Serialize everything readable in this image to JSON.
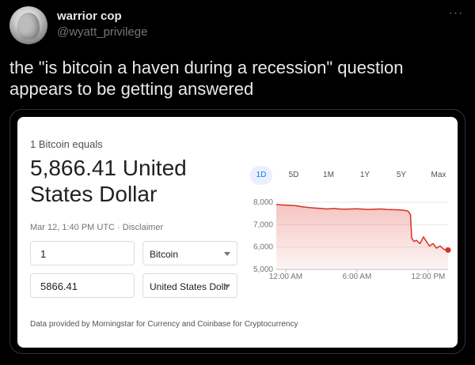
{
  "tweet": {
    "display_name": "warrior cop",
    "handle": "@wyatt_privilege",
    "more_icon": "···",
    "text": "the \"is bitcoin a haven during a recession\" question appears to be getting answered"
  },
  "converter": {
    "equals_label": "1 Bitcoin equals",
    "value_text": "5,866.41 United States Dollar",
    "timestamp": "Mar 12, 1:40 PM UTC",
    "separator": " · ",
    "disclaimer": "Disclaimer",
    "amount_from": "1",
    "currency_from": "Bitcoin",
    "amount_to": "5866.41",
    "currency_to": "United States Dolla",
    "footer": "Data provided by Morningstar for Currency and Coinbase for Cryptocurrency",
    "ranges": [
      "1D",
      "5D",
      "1M",
      "1Y",
      "5Y",
      "Max"
    ],
    "active_range": "1D"
  },
  "chart_data": {
    "type": "area",
    "yticks": [
      8000,
      7000,
      6000,
      5000
    ],
    "ytick_labels": [
      "8,000",
      "7,000",
      "6,000",
      "5,000"
    ],
    "ylim": [
      5000,
      8200
    ],
    "xticks": [
      0,
      6,
      12
    ],
    "xtick_labels": [
      "12:00 AM",
      "6:00 AM",
      "12:00 PM"
    ],
    "xlim": [
      -0.8,
      13.67
    ],
    "x": [
      -0.8,
      -0.3,
      0.2,
      0.8,
      1.4,
      2.0,
      2.5,
      3.0,
      3.5,
      4.0,
      4.5,
      5.0,
      5.5,
      6.0,
      6.5,
      7.0,
      7.5,
      8.0,
      8.5,
      9.0,
      9.5,
      10.0,
      10.3,
      10.5,
      10.6,
      10.8,
      11.0,
      11.3,
      11.6,
      11.9,
      12.1,
      12.4,
      12.7,
      13.0,
      13.3,
      13.67
    ],
    "y": [
      7900,
      7880,
      7870,
      7850,
      7800,
      7760,
      7740,
      7720,
      7700,
      7720,
      7700,
      7690,
      7700,
      7710,
      7690,
      7680,
      7690,
      7700,
      7680,
      7670,
      7660,
      7640,
      7600,
      7450,
      6400,
      6250,
      6300,
      6150,
      6450,
      6200,
      6050,
      6150,
      5950,
      6050,
      5900,
      5866
    ],
    "colors": {
      "line": "#d93025",
      "fill": "#fce8e6",
      "grid": "#e8eaed",
      "axis": "#bdc1c6"
    }
  }
}
